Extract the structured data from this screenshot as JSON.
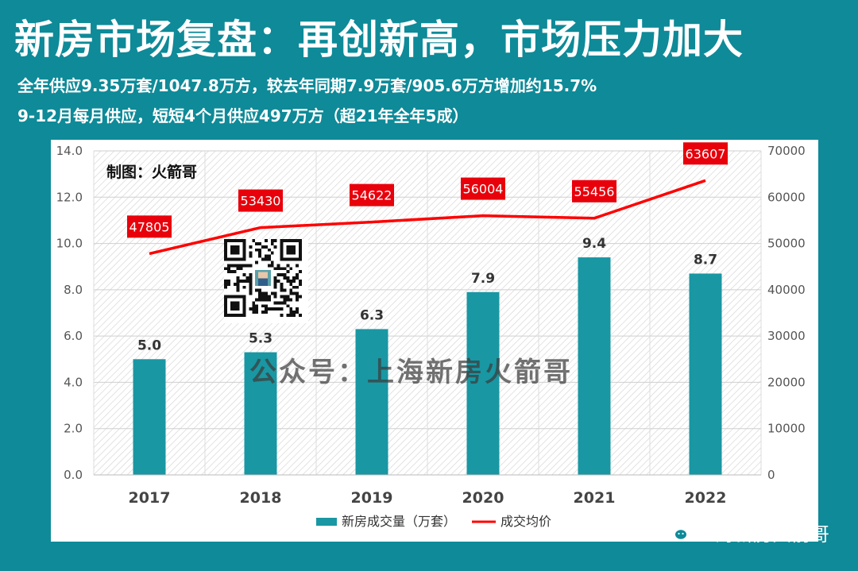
{
  "header": {
    "title": "新房市场复盘：再创新高，市场压力加大",
    "line1": "全年供应9.35万套/1047.8万方，较去年同期7.9万套/905.6万方增加约15.7%",
    "line2": "9-12月每月供应，短短4个月供应497万方（超21年全年5成）"
  },
  "chart": {
    "credit": "制图：火箭哥",
    "watermark": "公众号：上海新房火箭哥",
    "legend_bar": "新房成交量（万套）",
    "legend_line": "成交均价"
  },
  "footer": {
    "brand": "上海新房火箭哥"
  },
  "colors": {
    "background": "#0e8a98",
    "bar": "#1997a3",
    "line": "#ff0000",
    "label_box": "#e8000b"
  },
  "chart_data": {
    "type": "bar",
    "categories": [
      "2017",
      "2018",
      "2019",
      "2020",
      "2021",
      "2022"
    ],
    "series": [
      {
        "name": "新房成交量（万套）",
        "type": "bar",
        "axis": "left",
        "values": [
          5.0,
          5.3,
          6.3,
          7.9,
          9.4,
          8.7
        ]
      },
      {
        "name": "成交均价",
        "type": "line",
        "axis": "right",
        "values": [
          47805,
          53430,
          54622,
          56004,
          55456,
          63607
        ]
      }
    ],
    "y_left": {
      "min": 0,
      "max": 14,
      "step": 2,
      "ticks": [
        "0.0",
        "2.0",
        "4.0",
        "6.0",
        "8.0",
        "10.0",
        "12.0",
        "14.0"
      ]
    },
    "y_right": {
      "min": 0,
      "max": 70000,
      "step": 10000,
      "ticks": [
        "0",
        "10000",
        "20000",
        "30000",
        "40000",
        "50000",
        "60000",
        "70000"
      ]
    },
    "grid": true,
    "legend_position": "bottom"
  }
}
